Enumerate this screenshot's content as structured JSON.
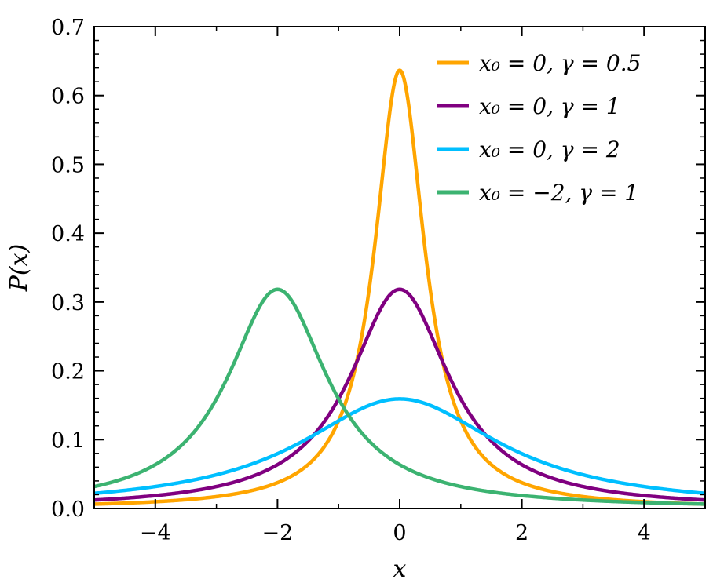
{
  "chart_data": {
    "type": "line",
    "title": "",
    "xlabel": "x",
    "ylabel": "P(x)",
    "xlim": [
      -5,
      5
    ],
    "ylim": [
      0,
      0.7
    ],
    "grid": false,
    "legend_position": "top-right",
    "x_ticks": [
      -4,
      -2,
      0,
      2,
      4
    ],
    "x_tick_labels": [
      "−4",
      "−2",
      "0",
      "2",
      "4"
    ],
    "y_ticks": [
      0.0,
      0.1,
      0.2,
      0.3,
      0.4,
      0.5,
      0.6,
      0.7
    ],
    "y_tick_labels": [
      "0.0",
      "0.1",
      "0.2",
      "0.3",
      "0.4",
      "0.5",
      "0.6",
      "0.7"
    ],
    "series": [
      {
        "name": "x₀ = 0, γ = 0.5",
        "x0": 0,
        "gamma": 0.5,
        "color": "#FFA500",
        "peak": 0.637
      },
      {
        "name": "x₀ = 0, γ = 1",
        "x0": 0,
        "gamma": 1,
        "color": "#800080",
        "peak": 0.318
      },
      {
        "name": "x₀ = 0, γ = 2",
        "x0": 0,
        "gamma": 2,
        "color": "#00BFFF",
        "peak": 0.159
      },
      {
        "name": "x₀ = −2, γ = 1",
        "x0": -2,
        "gamma": 1,
        "color": "#3CB371",
        "peak": 0.318
      }
    ]
  }
}
